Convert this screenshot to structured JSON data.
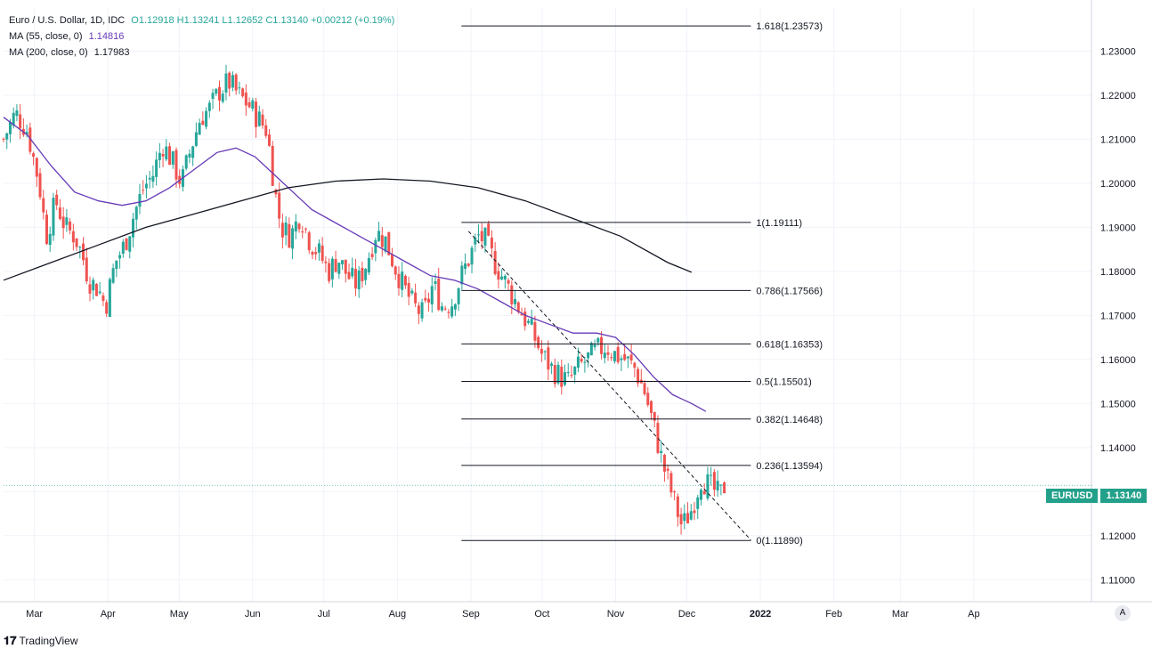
{
  "legend": {
    "symbol_line": "Euro / U.S. Dollar, 1D, IDC",
    "ohlc": "O1.12918  H1.13241  L1.12652  C1.13140  +0.00212 (+0.19%)",
    "ma55_label": "MA (55, close, 0)",
    "ma55_value": "1.14816",
    "ma200_label": "MA (200, close, 0)",
    "ma200_value": "1.17983"
  },
  "price_badge": {
    "symbol": "EURUSD",
    "price": "1.13140"
  },
  "branding": {
    "logo": "TradingView",
    "auto_label": "A"
  },
  "colors": {
    "up": "#26a69a",
    "down": "#ef5350",
    "ma55": "#673ab7",
    "ma200": "#131722",
    "grid": "#f0f3fa"
  },
  "chart_data": {
    "type": "candlestick",
    "title": "Euro / U.S. Dollar, 1D, IDC",
    "ylim": [
      1.105,
      1.24
    ],
    "y_ticks": [
      "1.11000",
      "1.12000",
      "1.13000",
      "1.14000",
      "1.15000",
      "1.16000",
      "1.17000",
      "1.18000",
      "1.19000",
      "1.20000",
      "1.21000",
      "1.22000",
      "1.23000"
    ],
    "x_ticks": [
      {
        "label": "Mar",
        "day": 13
      },
      {
        "label": "Apr",
        "day": 44
      },
      {
        "label": "May",
        "day": 74
      },
      {
        "label": "Jun",
        "day": 105
      },
      {
        "label": "Jul",
        "day": 135
      },
      {
        "label": "Aug",
        "day": 166
      },
      {
        "label": "Sep",
        "day": 197
      },
      {
        "label": "Oct",
        "day": 227
      },
      {
        "label": "Nov",
        "day": 258
      },
      {
        "label": "Dec",
        "day": 288
      },
      {
        "label": "2022",
        "day": 319
      },
      {
        "label": "Feb",
        "day": 350
      },
      {
        "label": "Mar",
        "day": 378
      },
      {
        "label": "Ap",
        "day": 409
      }
    ],
    "xlim_days": [
      0,
      415
    ],
    "close_path": [
      [
        0,
        1.21
      ],
      [
        5,
        1.216
      ],
      [
        10,
        1.212
      ],
      [
        15,
        1.2
      ],
      [
        18,
        1.188
      ],
      [
        22,
        1.196
      ],
      [
        26,
        1.19
      ],
      [
        30,
        1.188
      ],
      [
        33,
        1.184
      ],
      [
        36,
        1.178
      ],
      [
        40,
        1.176
      ],
      [
        43,
        1.172
      ],
      [
        47,
        1.182
      ],
      [
        51,
        1.186
      ],
      [
        55,
        1.193
      ],
      [
        59,
        1.199
      ],
      [
        63,
        1.202
      ],
      [
        67,
        1.209
      ],
      [
        71,
        1.205
      ],
      [
        75,
        1.2
      ],
      [
        79,
        1.208
      ],
      [
        83,
        1.215
      ],
      [
        87,
        1.217
      ],
      [
        91,
        1.221
      ],
      [
        95,
        1.223
      ],
      [
        99,
        1.22
      ],
      [
        103,
        1.218
      ],
      [
        107,
        1.215
      ],
      [
        111,
        1.212
      ],
      [
        113,
        1.204
      ],
      [
        115,
        1.196
      ],
      [
        117,
        1.19
      ],
      [
        121,
        1.188
      ],
      [
        125,
        1.193
      ],
      [
        129,
        1.187
      ],
      [
        133,
        1.184
      ],
      [
        137,
        1.18
      ],
      [
        141,
        1.183
      ],
      [
        145,
        1.179
      ],
      [
        149,
        1.177
      ],
      [
        153,
        1.182
      ],
      [
        157,
        1.189
      ],
      [
        161,
        1.187
      ],
      [
        165,
        1.181
      ],
      [
        169,
        1.176
      ],
      [
        173,
        1.172
      ],
      [
        177,
        1.17
      ],
      [
        181,
        1.177
      ],
      [
        185,
        1.172
      ],
      [
        189,
        1.173
      ],
      [
        193,
        1.179
      ],
      [
        197,
        1.184
      ],
      [
        200,
        1.188
      ],
      [
        203,
        1.187
      ],
      [
        207,
        1.182
      ],
      [
        211,
        1.178
      ],
      [
        215,
        1.174
      ],
      [
        219,
        1.17
      ],
      [
        223,
        1.166
      ],
      [
        227,
        1.161
      ],
      [
        231,
        1.158
      ],
      [
        235,
        1.156
      ],
      [
        238,
        1.155
      ],
      [
        242,
        1.158
      ],
      [
        246,
        1.16
      ],
      [
        250,
        1.162
      ],
      [
        254,
        1.163
      ],
      [
        258,
        1.161
      ],
      [
        262,
        1.16
      ],
      [
        266,
        1.158
      ],
      [
        270,
        1.153
      ],
      [
        274,
        1.145
      ],
      [
        278,
        1.136
      ],
      [
        282,
        1.129
      ],
      [
        286,
        1.122
      ],
      [
        290,
        1.126
      ],
      [
        294,
        1.133
      ],
      [
        298,
        1.131
      ],
      [
        302,
        1.129
      ],
      [
        304,
        1.1314
      ]
    ],
    "ma55": [
      [
        0,
        1.215
      ],
      [
        10,
        1.211
      ],
      [
        20,
        1.204
      ],
      [
        30,
        1.198
      ],
      [
        40,
        1.196
      ],
      [
        50,
        1.195
      ],
      [
        60,
        1.196
      ],
      [
        70,
        1.199
      ],
      [
        80,
        1.203
      ],
      [
        90,
        1.207
      ],
      [
        98,
        1.208
      ],
      [
        106,
        1.206
      ],
      [
        114,
        1.202
      ],
      [
        122,
        1.198
      ],
      [
        130,
        1.194
      ],
      [
        140,
        1.191
      ],
      [
        150,
        1.188
      ],
      [
        160,
        1.185
      ],
      [
        170,
        1.182
      ],
      [
        180,
        1.179
      ],
      [
        190,
        1.178
      ],
      [
        200,
        1.176
      ],
      [
        210,
        1.173
      ],
      [
        220,
        1.17
      ],
      [
        230,
        1.168
      ],
      [
        240,
        1.166
      ],
      [
        250,
        1.166
      ],
      [
        258,
        1.165
      ],
      [
        266,
        1.161
      ],
      [
        274,
        1.156
      ],
      [
        282,
        1.152
      ],
      [
        290,
        1.15
      ],
      [
        296,
        1.1482
      ]
    ],
    "ma200": [
      [
        0,
        1.178
      ],
      [
        20,
        1.182
      ],
      [
        40,
        1.186
      ],
      [
        60,
        1.19
      ],
      [
        80,
        1.193
      ],
      [
        100,
        1.196
      ],
      [
        120,
        1.199
      ],
      [
        140,
        1.2005
      ],
      [
        160,
        1.201
      ],
      [
        180,
        1.2005
      ],
      [
        200,
        1.199
      ],
      [
        220,
        1.196
      ],
      [
        240,
        1.192
      ],
      [
        260,
        1.188
      ],
      [
        280,
        1.182
      ],
      [
        290,
        1.1798
      ]
    ],
    "fib": {
      "start_day": 193,
      "end_day": 315,
      "levels": [
        {
          "label": "1.618(1.23573)",
          "value": 1.23573
        },
        {
          "label": "1(1.19111)",
          "value": 1.19111
        },
        {
          "label": "0.786(1.17566)",
          "value": 1.17566
        },
        {
          "label": "0.618(1.16353)",
          "value": 1.16353
        },
        {
          "label": "0.5(1.15501)",
          "value": 1.15501
        },
        {
          "label": "0.382(1.14648)",
          "value": 1.14648
        },
        {
          "label": "0.236(1.13594)",
          "value": 1.13594
        },
        {
          "label": "0(1.11890)",
          "value": 1.1189
        }
      ]
    },
    "trendline": [
      [
        196,
        1.1891
      ],
      [
        315,
        1.119
      ]
    ]
  }
}
